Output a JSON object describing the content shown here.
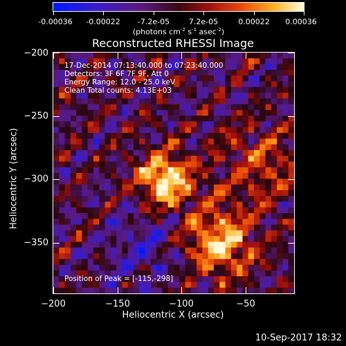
{
  "colorbar": {
    "tick_labels": [
      "-0.00036",
      "-0.00022",
      "-7.2e-05",
      "7.2e-05",
      "0.00022",
      "0.00036"
    ],
    "unit_prefix": "(photons cm",
    "unit_exp1": "-2",
    "unit_mid1": " s",
    "unit_exp2": "-1",
    "unit_mid2": " asec",
    "unit_exp3": "-2",
    "unit_suffix": ")",
    "colormap": "blue-purple-red-orange-yellow-white"
  },
  "plot": {
    "title": "Reconstructed RHESSI Image",
    "x_title": "Heliocentric X (arcsec)",
    "y_title": "Heliocentric Y (arcsec)",
    "x_ticks": [
      "−200",
      "−150",
      "−100",
      "−50"
    ],
    "y_ticks": [
      "−200",
      "−250",
      "−300",
      "−350"
    ],
    "x_range": [
      -200,
      -11
    ],
    "y_range": [
      -389,
      -200
    ]
  },
  "info": {
    "time_range": "17-Dec-2014 07:13:40.000 to 07:23:40.000",
    "detectors": "Detectors: 3F 6F 7F 9F, Att 0",
    "energy": "Energy Range: 12.0 - 25.0 keV",
    "clean": "Clean     Total counts: 4.13E+03",
    "peak": "Position of Peak = [-115,-298]"
  },
  "footer": {
    "timestamp": "10-Sep-2017 18:32"
  }
}
